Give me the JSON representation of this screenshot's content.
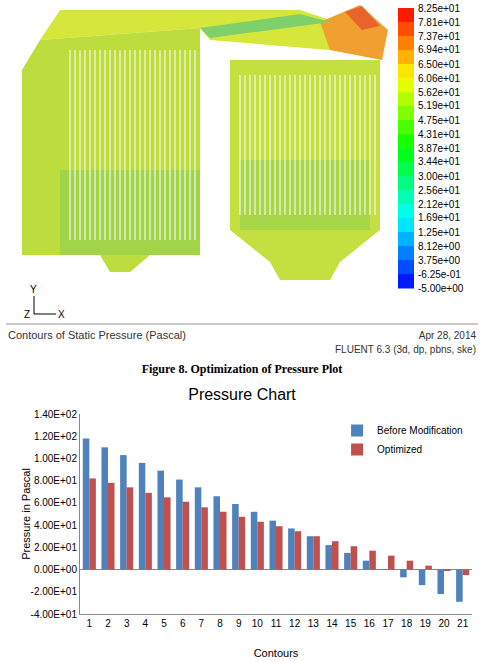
{
  "figure": {
    "colorbar": {
      "ticks": [
        {
          "value": 82.5,
          "label": "8.25e+01"
        },
        {
          "value": 78.1,
          "label": "7.81e+01"
        },
        {
          "value": 73.7,
          "label": "7.37e+01"
        },
        {
          "value": 69.4,
          "label": "6.94e+01"
        },
        {
          "value": 65.0,
          "label": "6.50e+01"
        },
        {
          "value": 60.6,
          "label": "6.06e+01"
        },
        {
          "value": 56.2,
          "label": "5.62e+01"
        },
        {
          "value": 51.9,
          "label": "5.19e+01"
        },
        {
          "value": 47.5,
          "label": "4.75e+01"
        },
        {
          "value": 43.1,
          "label": "4.31e+01"
        },
        {
          "value": 38.7,
          "label": "3.87e+01"
        },
        {
          "value": 34.4,
          "label": "3.44e+01"
        },
        {
          "value": 30.0,
          "label": "3.00e+01"
        },
        {
          "value": 25.6,
          "label": "2.56e+01"
        },
        {
          "value": 21.2,
          "label": "2.12e+01"
        },
        {
          "value": 16.9,
          "label": "1.69e+01"
        },
        {
          "value": 12.5,
          "label": "1.25e+01"
        },
        {
          "value": 8.12,
          "label": "8.12e+00"
        },
        {
          "value": 3.75,
          "label": "3.75e+00"
        },
        {
          "value": -0.625,
          "label": "-6.25e-01"
        },
        {
          "value": -5.0,
          "label": "-5.00e+00"
        }
      ]
    },
    "axes": {
      "y": "Y",
      "z": "Z",
      "x": "X"
    },
    "footer": {
      "title": "Contours of Static Pressure (Pascal)",
      "date": "Apr 28, 2014",
      "solver": "FLUENT 6.3 (3d, dp, pbns, ske)"
    },
    "caption": "Figure 8. Optimization of Pressure Plot"
  },
  "chart_data": {
    "type": "bar",
    "title": "Pressure Chart",
    "x_label": "Contours",
    "y_label": "Pressure in Pascal",
    "categories": [
      "1",
      "2",
      "3",
      "4",
      "5",
      "6",
      "7",
      "8",
      "9",
      "10",
      "11",
      "12",
      "13",
      "14",
      "15",
      "16",
      "17",
      "18",
      "19",
      "20",
      "21"
    ],
    "series": [
      {
        "name": "Before Modification",
        "color": "#4f81bd",
        "values": [
          118,
          110,
          103,
          96,
          89,
          81,
          74,
          66,
          59,
          52,
          44,
          37,
          30,
          22,
          15,
          8,
          0.5,
          -7,
          -14,
          -22,
          -29
        ]
      },
      {
        "name": "Optimized",
        "color": "#c0504d",
        "values": [
          82,
          78,
          74,
          69,
          65,
          61,
          56,
          52,
          47.5,
          43,
          39,
          34.5,
          30,
          25.5,
          21,
          17,
          12.5,
          8,
          3.5,
          -0.5,
          -5
        ]
      }
    ],
    "ylim": [
      -40,
      140
    ],
    "yticks": [
      {
        "value": -40,
        "label": "-4.00E+01"
      },
      {
        "value": -20,
        "label": "-2.00E+01"
      },
      {
        "value": 0,
        "label": "0.00E+00"
      },
      {
        "value": 20,
        "label": "2.00E+01"
      },
      {
        "value": 40,
        "label": "4.00E+01"
      },
      {
        "value": 60,
        "label": "6.00E+01"
      },
      {
        "value": 80,
        "label": "8.00E+01"
      },
      {
        "value": 100,
        "label": "1.00E+02"
      },
      {
        "value": 120,
        "label": "1.20E+02"
      },
      {
        "value": 140,
        "label": "1.40E+02"
      }
    ],
    "grid": false,
    "legend": "top right"
  }
}
